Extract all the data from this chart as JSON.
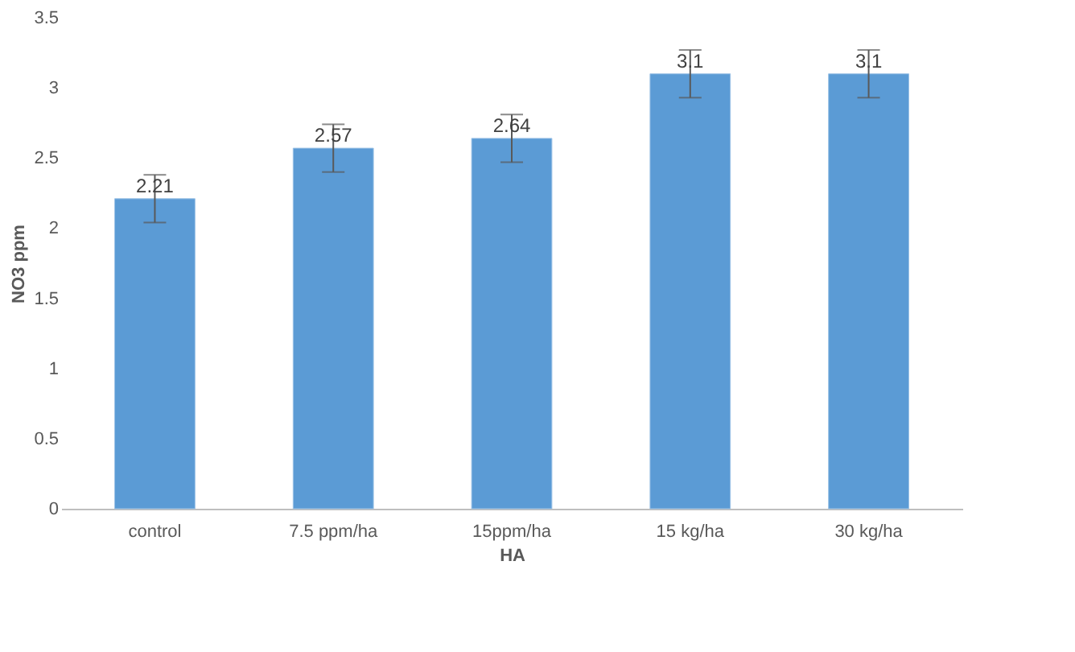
{
  "chart_data": {
    "type": "bar",
    "xlabel": "HA",
    "ylabel": "NO3 ppm",
    "categories": [
      "control",
      "7.5 ppm/ha",
      "15ppm/ha",
      "15 kg/ha",
      "30 kg/ha"
    ],
    "values": [
      2.21,
      2.57,
      2.64,
      3.1,
      3.1
    ],
    "errors": [
      0.17,
      0.17,
      0.17,
      0.17,
      0.17
    ],
    "color": "#5b9bd5",
    "ylim": [
      0,
      3.5
    ],
    "yticks": [
      0,
      0.5,
      1,
      1.5,
      2,
      2.5,
      3,
      3.5
    ],
    "data_labels": true,
    "grid": false
  }
}
